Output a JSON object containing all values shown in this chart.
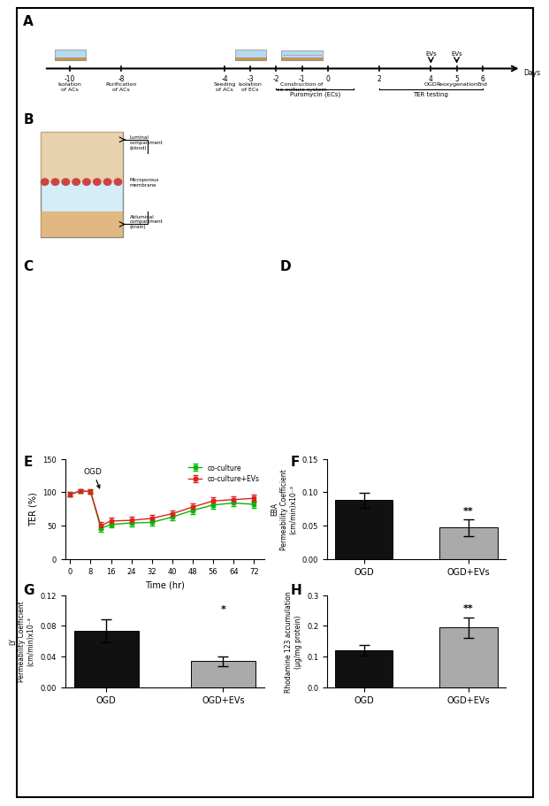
{
  "panel_E": {
    "time_points": [
      0,
      4,
      8,
      12,
      16,
      24,
      32,
      40,
      48,
      56,
      64,
      72
    ],
    "coculture_mean": [
      97,
      102,
      101,
      46,
      52,
      54,
      55,
      63,
      73,
      81,
      84,
      82
    ],
    "coculture_err": [
      3,
      3,
      3,
      5,
      5,
      5,
      5,
      5,
      5,
      5,
      5,
      5
    ],
    "coculture_evs_mean": [
      97,
      102,
      101,
      50,
      57,
      58,
      61,
      68,
      78,
      87,
      89,
      91
    ],
    "coculture_evs_err": [
      3,
      3,
      3,
      5,
      5,
      5,
      5,
      5,
      5,
      5,
      5,
      5
    ],
    "xlabel": "Time (hr)",
    "ylabel": "TER (%)",
    "ylim": [
      0,
      150
    ],
    "yticks": [
      0,
      50,
      100,
      150
    ],
    "xticks": [
      0,
      8,
      16,
      24,
      32,
      40,
      48,
      56,
      64,
      72
    ],
    "ogd_label": "OGD",
    "legend": [
      "co-culture",
      "co-culture+EVs"
    ],
    "line_color_coculture": "#00bb00",
    "line_color_evs": "#dd2222"
  },
  "panel_F": {
    "categories": [
      "OGD",
      "OGD+EVs"
    ],
    "values": [
      0.088,
      0.047
    ],
    "errors": [
      0.011,
      0.013
    ],
    "colors": [
      "#111111",
      "#aaaaaa"
    ],
    "ylabel": "EBA\nPermeability Coefficient\n(cm/min)x10⁻³",
    "ylim": [
      0,
      0.15
    ],
    "yticks": [
      0.0,
      0.05,
      0.1,
      0.15
    ],
    "significance": "**",
    "sig_x": 1,
    "sig_y": 0.068
  },
  "panel_G": {
    "categories": [
      "OGD",
      "OGD+EVs"
    ],
    "values": [
      0.074,
      0.034
    ],
    "errors": [
      0.015,
      0.006
    ],
    "colors": [
      "#111111",
      "#aaaaaa"
    ],
    "ylabel": "LY\nPermeability Coefficient\n(cm/min)x10⁻³",
    "ylim": [
      0,
      0.12
    ],
    "yticks": [
      0.0,
      0.04,
      0.08,
      0.12
    ],
    "significance": "*",
    "sig_x": 1,
    "sig_y": 0.098
  },
  "panel_H": {
    "categories": [
      "OGD",
      "OGD+EVs"
    ],
    "values": [
      0.12,
      0.195
    ],
    "errors": [
      0.018,
      0.033
    ],
    "colors": [
      "#111111",
      "#aaaaaa"
    ],
    "ylabel": "Rhodamine 123 accumulation\n(μg/mg protein)",
    "ylim": [
      0,
      0.3
    ],
    "yticks": [
      0.0,
      0.1,
      0.2,
      0.3
    ],
    "significance": "**",
    "sig_x": 1,
    "sig_y": 0.248
  },
  "background_color": "#ffffff"
}
